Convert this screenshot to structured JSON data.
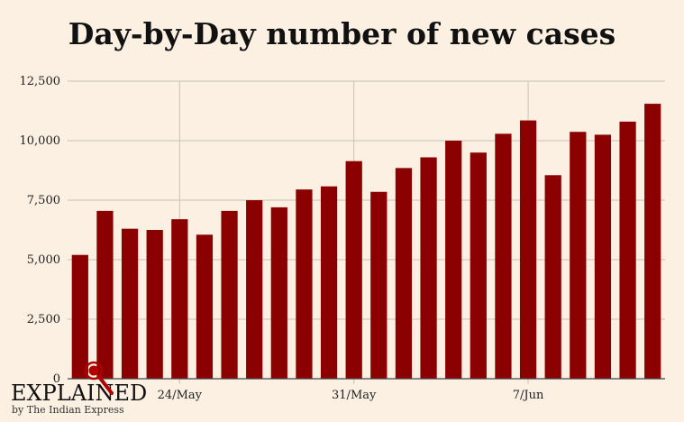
{
  "chart_data": {
    "type": "bar",
    "title": "Day-by-Day number of new cases",
    "xlabel": "",
    "ylabel": "",
    "ylim": [
      0,
      12500
    ],
    "yticks": [
      "0",
      "2,500",
      "5,000",
      "7,500",
      "10,000",
      "12,500"
    ],
    "ytick_values": [
      0,
      2500,
      5000,
      7500,
      10000,
      12500
    ],
    "xtick_labels": [
      {
        "label": "24/May",
        "category_index": 4
      },
      {
        "label": "31/May",
        "category_index": 11
      },
      {
        "label": "7/Jun",
        "category_index": 18
      }
    ],
    "values": [
      5200,
      7050,
      6300,
      6250,
      6700,
      6050,
      7050,
      7500,
      7200,
      7950,
      8080,
      9140,
      7850,
      8850,
      9300,
      10000,
      9500,
      10290,
      10850,
      8550,
      10370,
      10250,
      10800,
      11550
    ],
    "bar_color": "#8b0000",
    "grid": true,
    "legend": "none"
  },
  "brand": {
    "name": "EXPLAINED",
    "byline": "by The Indian Express",
    "logo_icon": "magnifier-icon"
  },
  "colors": {
    "background": "#fbf0e2",
    "bar": "#8b0000",
    "grid": "#c8c2ba",
    "axis": "#444444",
    "accent": "#b30000"
  }
}
